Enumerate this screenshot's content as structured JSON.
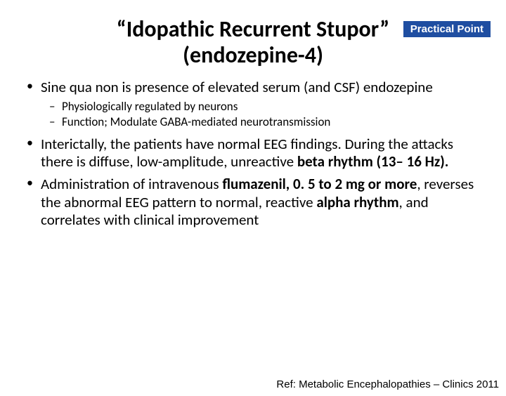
{
  "badge": {
    "text": "Practical Point",
    "bg_color": "#1f4ea1",
    "text_color": "#ffffff"
  },
  "title_line1": "“Idopathic Recurrent Stupor”",
  "title_line2": "(endozepine-4)",
  "bullets": {
    "b1_pre": "Sine qua non is presence of elevated serum (and CSF) endozepine",
    "b1_sub1": "Physiologically regulated by neurons",
    "b1_sub2": "Function; Modulate GABA-mediated neurotransmission",
    "b2_pre": "Interictally, the patients have normal EEG findings. During the attacks there is diffuse, low-amplitude, unreactive ",
    "b2_bold": "beta rhythm (13– 16 Hz).",
    "b3_pre": "Administration of intravenous ",
    "b3_bold1": "flumazenil, 0. 5 to 2 mg or more",
    "b3_mid": ", reverses the abnormal EEG pattern to normal, reactive ",
    "b3_bold2": "alpha rhythm",
    "b3_post": ", and correlates with clinical improvement"
  },
  "reference": "Ref: Metabolic Encephalopathies – Clinics 2011"
}
